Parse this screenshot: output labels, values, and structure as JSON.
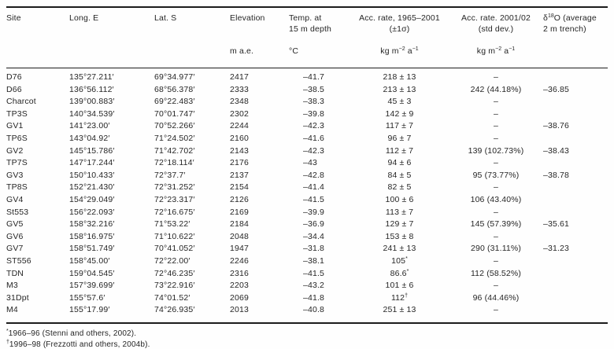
{
  "table": {
    "header": {
      "site": "Site",
      "long": "Long. E",
      "lat": "Lat. S",
      "elevation_label": "Elevation",
      "elevation_unit": "m a.e.",
      "temp_label_1": "Temp. at",
      "temp_label_2": "15 m depth",
      "temp_unit": "°C",
      "acc1_label_1": "Acc. rate, 1965–2001",
      "acc1_label_2": "(±1σ)",
      "acc2_label_1": "Acc. rate. 2001/02",
      "acc2_label_2": "(std dev.)",
      "kg_unit_parts": [
        "kg m",
        "−2",
        " a",
        "−1"
      ],
      "d18o": {
        "pre": "δ",
        "sup": "18",
        "post": "O (average",
        "line2": "2 m trench)"
      }
    },
    "rows": [
      {
        "site": "D76",
        "long": "135°27.211′",
        "lat": "69°34.977′",
        "elev": "2417",
        "temp": "–41.7",
        "acc1": "218 ± 13",
        "acc1_sup": "",
        "acc2": "–",
        "d18o": ""
      },
      {
        "site": "D66",
        "long": "136°56.112′",
        "lat": "68°56.378′",
        "elev": "2333",
        "temp": "–38.5",
        "acc1": "213 ± 13",
        "acc1_sup": "",
        "acc2": "242 (44.18%)",
        "d18o": "–36.85"
      },
      {
        "site": "Charcot",
        "long": "139°00.883′",
        "lat": "69°22.483′",
        "elev": "2348",
        "temp": "–38.3",
        "acc1": "45 ± 3",
        "acc1_sup": "",
        "acc2": "–",
        "d18o": ""
      },
      {
        "site": "TP3S",
        "long": "140°34.539′",
        "lat": "70°01.747′",
        "elev": "2302",
        "temp": "–39.8",
        "acc1": "142 ± 9",
        "acc1_sup": "",
        "acc2": "–",
        "d18o": ""
      },
      {
        "site": "GV1",
        "long": "141°23.00′",
        "lat": "70°52.266′",
        "elev": "2244",
        "temp": "–42.3",
        "acc1": "117 ± 7",
        "acc1_sup": "",
        "acc2": "–",
        "d18o": "–38.76"
      },
      {
        "site": "TP6S",
        "long": "143°04.92′",
        "lat": "71°24.502′",
        "elev": "2160",
        "temp": "–41.6",
        "acc1": "96 ± 7",
        "acc1_sup": "",
        "acc2": "–",
        "d18o": ""
      },
      {
        "site": "GV2",
        "long": "145°15.786′",
        "lat": "71°42.702′",
        "elev": "2143",
        "temp": "–42.3",
        "acc1": "112 ± 7",
        "acc1_sup": "",
        "acc2": "139 (102.73%)",
        "d18o": "–38.43"
      },
      {
        "site": "TP7S",
        "long": "147°17.244′",
        "lat": "72°18.114′",
        "elev": "2176",
        "temp": "–43",
        "acc1": "94 ± 6",
        "acc1_sup": "",
        "acc2": "–",
        "d18o": ""
      },
      {
        "site": "GV3",
        "long": "150°10.433′",
        "lat": "72°37.7′",
        "elev": "2137",
        "temp": "–42.8",
        "acc1": "84 ± 5",
        "acc1_sup": "",
        "acc2": "95 (73.77%)",
        "d18o": "–38.78"
      },
      {
        "site": "TP8S",
        "long": "152°21.430′",
        "lat": "72°31.252′",
        "elev": "2154",
        "temp": "–41.4",
        "acc1": "82 ± 5",
        "acc1_sup": "",
        "acc2": "–",
        "d18o": ""
      },
      {
        "site": "GV4",
        "long": "154°29.049′",
        "lat": "72°23.317′",
        "elev": "2126",
        "temp": "–41.5",
        "acc1": "100 ± 6",
        "acc1_sup": "",
        "acc2": "106 (43.40%)",
        "d18o": ""
      },
      {
        "site": "St553",
        "long": "156°22.093′",
        "lat": "72°16.675′",
        "elev": "2169",
        "temp": "–39.9",
        "acc1": "113 ± 7",
        "acc1_sup": "",
        "acc2": "–",
        "d18o": ""
      },
      {
        "site": "GV5",
        "long": "158°32.216′",
        "lat": "71°53.22′",
        "elev": "2184",
        "temp": "–36.9",
        "acc1": "129 ± 7",
        "acc1_sup": "",
        "acc2": "145 (57.39%)",
        "d18o": "–35.61"
      },
      {
        "site": "GV6",
        "long": "158°16.975′",
        "lat": "71°10.622′",
        "elev": "2048",
        "temp": "–34.4",
        "acc1": "153 ± 8",
        "acc1_sup": "",
        "acc2": "–",
        "d18o": ""
      },
      {
        "site": "GV7",
        "long": "158°51.749′",
        "lat": "70°41.052′",
        "elev": "1947",
        "temp": "–31.8",
        "acc1": "241 ± 13",
        "acc1_sup": "",
        "acc2": "290 (31.11%)",
        "d18o": "–31.23"
      },
      {
        "site": "ST556",
        "long": "158°45.00′",
        "lat": "72°22.00′",
        "elev": "2246",
        "temp": "–38.1",
        "acc1": "105",
        "acc1_sup": "*",
        "acc2": "–",
        "d18o": ""
      },
      {
        "site": "TDN",
        "long": "159°04.545′",
        "lat": "72°46.235′",
        "elev": "2316",
        "temp": "–41.5",
        "acc1": "86.6",
        "acc1_sup": "*",
        "acc2": "112 (58.52%)",
        "d18o": ""
      },
      {
        "site": "M3",
        "long": "157°39.699′",
        "lat": "73°22.916′",
        "elev": "2203",
        "temp": "–43.2",
        "acc1": "101 ± 6",
        "acc1_sup": "",
        "acc2": "–",
        "d18o": ""
      },
      {
        "site": "31Dpt",
        "long": "155°57.6′",
        "lat": "74°01.52′",
        "elev": "2069",
        "temp": "–41.8",
        "acc1": "112",
        "acc1_sup": "†",
        "acc2": "96 (44.46%)",
        "d18o": ""
      },
      {
        "site": "M4",
        "long": "155°17.99′",
        "lat": "74°26.935′",
        "elev": "2013",
        "temp": "–40.8",
        "acc1": "251 ± 13",
        "acc1_sup": "",
        "acc2": "–",
        "d18o": ""
      }
    ],
    "footnotes": [
      {
        "mark": "*",
        "text": "1966–96 (Stenni and others, 2002)."
      },
      {
        "mark": "†",
        "text": "1996–98 (Frezzotti and others, 2004b)."
      }
    ]
  }
}
